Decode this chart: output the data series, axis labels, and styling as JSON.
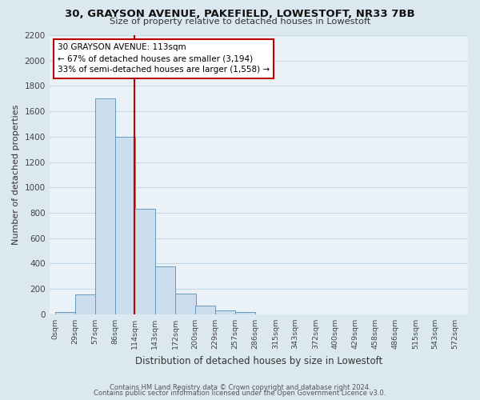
{
  "title": "30, GRAYSON AVENUE, PAKEFIELD, LOWESTOFT, NR33 7BB",
  "subtitle": "Size of property relative to detached houses in Lowestoft",
  "xlabel": "Distribution of detached houses by size in Lowestoft",
  "ylabel": "Number of detached properties",
  "bar_left_edges": [
    0,
    29,
    57,
    86,
    114,
    143,
    172,
    200,
    229,
    257,
    286,
    315,
    343,
    372,
    400,
    429,
    458,
    486,
    515,
    543
  ],
  "bar_heights": [
    20,
    155,
    1700,
    1400,
    830,
    380,
    165,
    65,
    30,
    20,
    0,
    0,
    0,
    0,
    0,
    0,
    0,
    0,
    0,
    0
  ],
  "bin_width": 29,
  "bar_color": "#ccdded",
  "bar_edge_color": "#6699bb",
  "vline_x": 113,
  "vline_color": "#bb0000",
  "annotation_text": "30 GRAYSON AVENUE: 113sqm\n← 67% of detached houses are smaller (3,194)\n33% of semi-detached houses are larger (1,558) →",
  "annotation_box_color": "#ffffff",
  "annotation_box_edge": "#bb0000",
  "ylim_max": 2200,
  "yticks": [
    0,
    200,
    400,
    600,
    800,
    1000,
    1200,
    1400,
    1600,
    1800,
    2000,
    2200
  ],
  "xtick_labels": [
    "0sqm",
    "29sqm",
    "57sqm",
    "86sqm",
    "114sqm",
    "143sqm",
    "172sqm",
    "200sqm",
    "229sqm",
    "257sqm",
    "286sqm",
    "315sqm",
    "343sqm",
    "372sqm",
    "400sqm",
    "429sqm",
    "458sqm",
    "486sqm",
    "515sqm",
    "543sqm",
    "572sqm"
  ],
  "xtick_positions": [
    0,
    29,
    57,
    86,
    114,
    143,
    172,
    200,
    229,
    257,
    286,
    315,
    343,
    372,
    400,
    429,
    458,
    486,
    515,
    543,
    572
  ],
  "footer_line1": "Contains HM Land Registry data © Crown copyright and database right 2024.",
  "footer_line2": "Contains public sector information licensed under the Open Government Licence v3.0.",
  "fig_bg_color": "#dce8f0",
  "plot_bg_color": "#eaf2f8",
  "grid_color": "#c0d8e8",
  "title_color": "#111111",
  "label_color": "#333333",
  "tick_color": "#444444"
}
